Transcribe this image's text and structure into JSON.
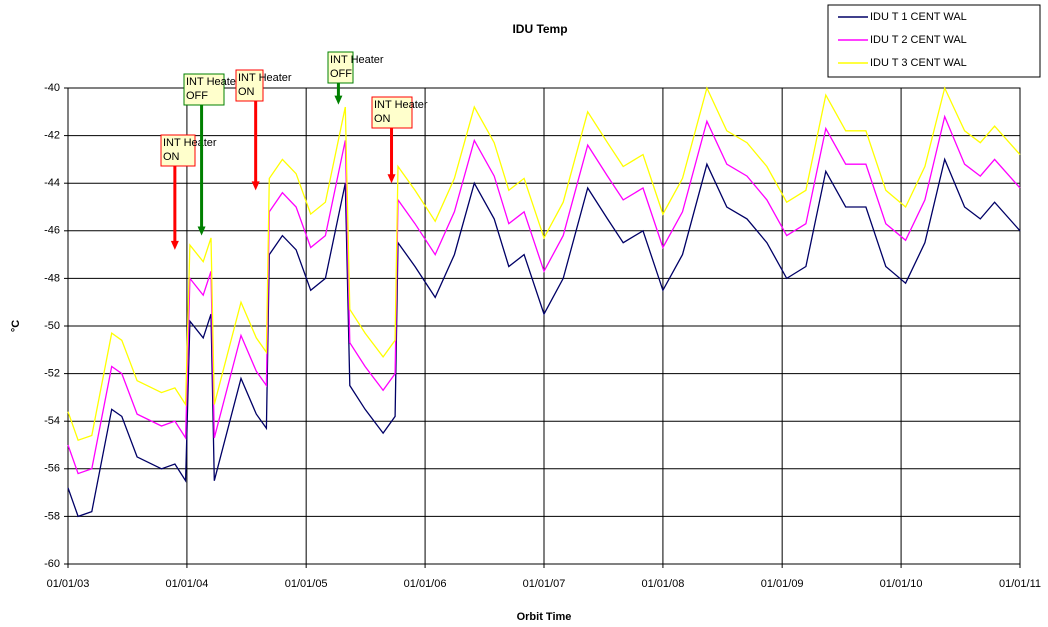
{
  "chart_data": {
    "type": "line",
    "title": "IDU Temp",
    "x_label": "Orbit Time",
    "y_label": "°C",
    "x": [
      "01/01/03",
      "02/01/03",
      "03/15/03",
      "05/15/03",
      "06/15/03",
      "08/01/03",
      "10/15/03",
      "11/25/03",
      "12/28/03",
      "01/10/04",
      "02/20/04",
      "03/15/04",
      "03/25/04",
      "06/15/04",
      "08/01/04",
      "09/01/04",
      "09/10/04",
      "10/20/04",
      "12/01/04",
      "01/15/05",
      "03/01/05",
      "05/01/05",
      "05/15/05",
      "07/01/05",
      "08/25/05",
      "10/01/05",
      "10/10/05",
      "12/01/05",
      "02/01/06",
      "04/01/06",
      "06/01/06",
      "08/01/06",
      "09/15/06",
      "11/01/06",
      "01/01/07",
      "03/01/07",
      "05/15/07",
      "07/15/07",
      "09/01/07",
      "11/01/07",
      "01/01/08",
      "03/01/08",
      "05/15/08",
      "07/15/08",
      "09/15/08",
      "11/15/08",
      "01/15/09",
      "03/15/09",
      "05/15/09",
      "07/15/09",
      "09/15/09",
      "11/15/09",
      "01/15/10",
      "03/15/10",
      "05/15/10",
      "07/15/10",
      "09/01/10",
      "10/15/10",
      "01/01/11"
    ],
    "series": [
      {
        "name": "IDU T 1 CENT WAL",
        "color": "#000066",
        "values": [
          -56.8,
          -58,
          -57.8,
          -53.5,
          -53.8,
          -55.5,
          -56,
          -55.8,
          -56.5,
          -49.8,
          -50.5,
          -49.5,
          -56.5,
          -52.2,
          -53.7,
          -54.3,
          -47,
          -46.2,
          -46.8,
          -48.5,
          -48,
          -44,
          -52.5,
          -53.5,
          -54.5,
          -53.8,
          -46.5,
          -47.5,
          -48.8,
          -47,
          -44,
          -45.5,
          -47.5,
          -47,
          -49.5,
          -48,
          -44.2,
          -45.5,
          -46.5,
          -46,
          -48.5,
          -47,
          -43.2,
          -45,
          -45.5,
          -46.5,
          -48,
          -47.5,
          -43.5,
          -45,
          -45,
          -47.5,
          -48.2,
          -46.5,
          -43,
          -45,
          -45.5,
          -44.8,
          -46
        ]
      },
      {
        "name": "IDU T 2 CENT WAL",
        "color": "#ff00ff",
        "values": [
          -55,
          -56.2,
          -56,
          -51.7,
          -52,
          -53.7,
          -54.2,
          -54,
          -54.7,
          -48,
          -48.7,
          -47.7,
          -54.7,
          -50.4,
          -51.9,
          -52.5,
          -45.2,
          -44.4,
          -45,
          -46.7,
          -46.2,
          -42.2,
          -50.7,
          -51.7,
          -52.7,
          -52,
          -44.7,
          -45.7,
          -47,
          -45.2,
          -42.2,
          -43.7,
          -45.7,
          -45.2,
          -47.7,
          -46.2,
          -42.4,
          -43.7,
          -44.7,
          -44.2,
          -46.7,
          -45.2,
          -41.4,
          -43.2,
          -43.7,
          -44.7,
          -46.2,
          -45.7,
          -41.7,
          -43.2,
          -43.2,
          -45.7,
          -46.4,
          -44.7,
          -41.2,
          -43.2,
          -43.7,
          -43,
          -44.2
        ]
      },
      {
        "name": "IDU T 3 CENT WAL",
        "color": "#ffff00",
        "values": [
          -53.6,
          -54.8,
          -54.6,
          -50.3,
          -50.6,
          -52.3,
          -52.8,
          -52.6,
          -53.3,
          -46.6,
          -47.3,
          -46.3,
          -53.3,
          -49,
          -50.5,
          -51.1,
          -43.8,
          -43,
          -43.6,
          -45.3,
          -44.8,
          -40.8,
          -49.3,
          -50.3,
          -51.3,
          -50.6,
          -43.3,
          -44.3,
          -45.6,
          -43.8,
          -40.8,
          -42.3,
          -44.3,
          -43.8,
          -46.3,
          -44.8,
          -41,
          -42.3,
          -43.3,
          -42.8,
          -45.3,
          -43.8,
          -40,
          -41.8,
          -42.3,
          -43.3,
          -44.8,
          -44.3,
          -40.3,
          -41.8,
          -41.8,
          -44.3,
          -45,
          -43.3,
          -40,
          -41.8,
          -42.3,
          -41.6,
          -42.8
        ]
      }
    ],
    "xlim": [
      "01/01/03",
      "01/01/11"
    ],
    "xticks": [
      "01/01/03",
      "01/01/04",
      "01/01/05",
      "01/01/06",
      "01/01/07",
      "01/01/08",
      "01/01/09",
      "01/01/10",
      "01/01/11"
    ],
    "ylim": [
      -60,
      -40
    ],
    "yticks": [
      -60,
      -58,
      -56,
      -54,
      -52,
      -50,
      -48,
      -46,
      -44,
      -42,
      -40
    ],
    "grid": true,
    "legend": "top-right",
    "annotations": [
      {
        "text": "INT Heater",
        "state": "ON",
        "x": "11/25/03",
        "y": -46.8,
        "color": "#ff0000"
      },
      {
        "text": "INT Heater",
        "state": "OFF",
        "x": "02/15/04",
        "y": -46.2,
        "color": "#008000"
      },
      {
        "text": "INT Heater",
        "state": "ON",
        "x": "07/30/04",
        "y": -44.3,
        "color": "#ff0000"
      },
      {
        "text": "INT Heater",
        "state": "OFF",
        "x": "04/10/05",
        "y": -40.7,
        "color": "#008000"
      },
      {
        "text": "INT Heater",
        "state": "ON",
        "x": "09/20/05",
        "y": -44,
        "color": "#ff0000"
      }
    ]
  }
}
